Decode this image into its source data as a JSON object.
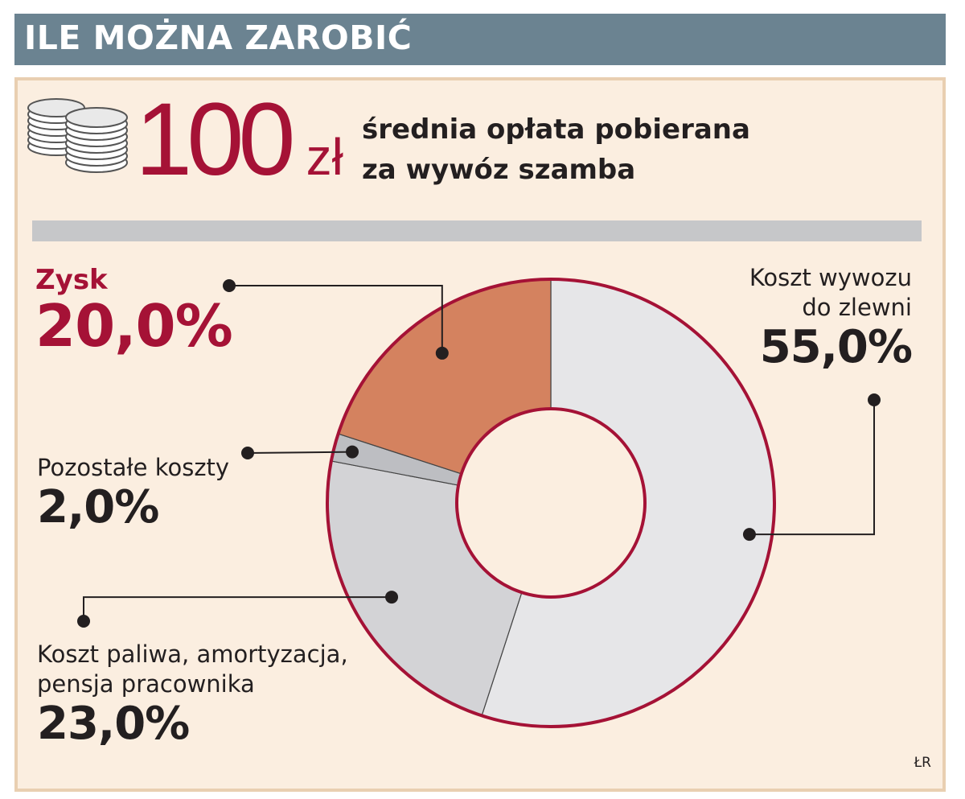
{
  "header": {
    "title": "ILE MOŻNA ZAROBIĆ"
  },
  "headline": {
    "value": "100",
    "unit": "zł",
    "description_line1": "średnia opłata pobierana",
    "description_line2": "za wywóz szamba"
  },
  "icons": {
    "coins": "coins-icon"
  },
  "colors": {
    "title_bar": "#6b8391",
    "background": "#fbeee0",
    "accent_red": "#a51236",
    "profit_slice": "#d4825f",
    "light_slice": "#e6e6e8",
    "mid_slice": "#d3d3d6",
    "small_slice": "#bdbec2"
  },
  "chart_data": {
    "type": "pie",
    "style": "donut",
    "categories": [
      "Koszt wywozu do zlewni",
      "Koszt paliwa, amortyzacja, pensja pracownika",
      "Pozostałe koszty",
      "Zysk"
    ],
    "values": [
      55.0,
      23.0,
      2.0,
      20.0
    ],
    "unit": "%",
    "labels": [
      {
        "name_lines": [
          "Koszt wywozu",
          "do zlewni"
        ],
        "value_text": "55,0%"
      },
      {
        "name_lines": [
          "Koszt paliwa, amortyzacja,",
          "pensja pracownika"
        ],
        "value_text": "23,0%"
      },
      {
        "name_lines": [
          "Pozostałe koszty"
        ],
        "value_text": "2,0%"
      },
      {
        "name_lines": [
          "Zysk"
        ],
        "value_text": "20,0%"
      }
    ],
    "slice_colors": [
      "#e6e6e8",
      "#d3d3d6",
      "#bdbec2",
      "#d4825f"
    ]
  },
  "credit": "ŁR"
}
